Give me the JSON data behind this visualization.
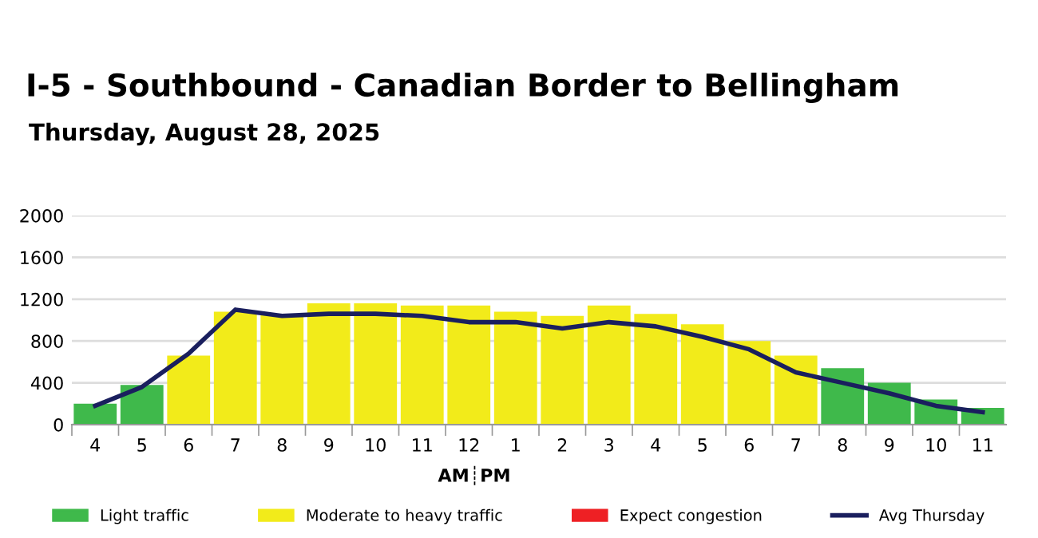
{
  "chart_data": {
    "type": "bar",
    "title": "I-5 - Southbound - Canadian Border to Bellingham",
    "subtitle": "Thursday, August 28, 2025",
    "categories": [
      "4",
      "5",
      "6",
      "7",
      "8",
      "9",
      "10",
      "11",
      "12",
      "1",
      "2",
      "3",
      "4",
      "5",
      "6",
      "7",
      "8",
      "9",
      "10",
      "11"
    ],
    "series": [
      {
        "name": "Light traffic",
        "color": "#3fb94b",
        "values": [
          200,
          380,
          null,
          null,
          null,
          null,
          null,
          null,
          null,
          null,
          null,
          null,
          null,
          null,
          null,
          null,
          540,
          400,
          240,
          160
        ]
      },
      {
        "name": "Moderate to heavy traffic",
        "color": "#f2eb1a",
        "values": [
          null,
          null,
          660,
          1080,
          1060,
          1160,
          1160,
          1140,
          1140,
          1080,
          1040,
          1140,
          1060,
          960,
          800,
          660,
          null,
          null,
          null,
          null
        ]
      },
      {
        "name": "Expect congestion",
        "color": "#ee2024",
        "values": [
          null,
          null,
          null,
          null,
          null,
          null,
          null,
          null,
          null,
          null,
          null,
          null,
          null,
          null,
          null,
          null,
          null,
          null,
          null,
          null
        ]
      },
      {
        "name": "Avg Thursday",
        "type": "line",
        "color": "#1a1f5e",
        "values": [
          180,
          360,
          680,
          1100,
          1040,
          1060,
          1060,
          1040,
          980,
          980,
          920,
          980,
          940,
          840,
          720,
          500,
          400,
          300,
          180,
          120
        ]
      }
    ],
    "ylim": [
      0,
      2000
    ],
    "yticks": [
      0,
      400,
      800,
      1200,
      1600,
      2000
    ],
    "grid": "y",
    "legend": "bottom",
    "annotations": [
      "AM┊PM"
    ]
  }
}
